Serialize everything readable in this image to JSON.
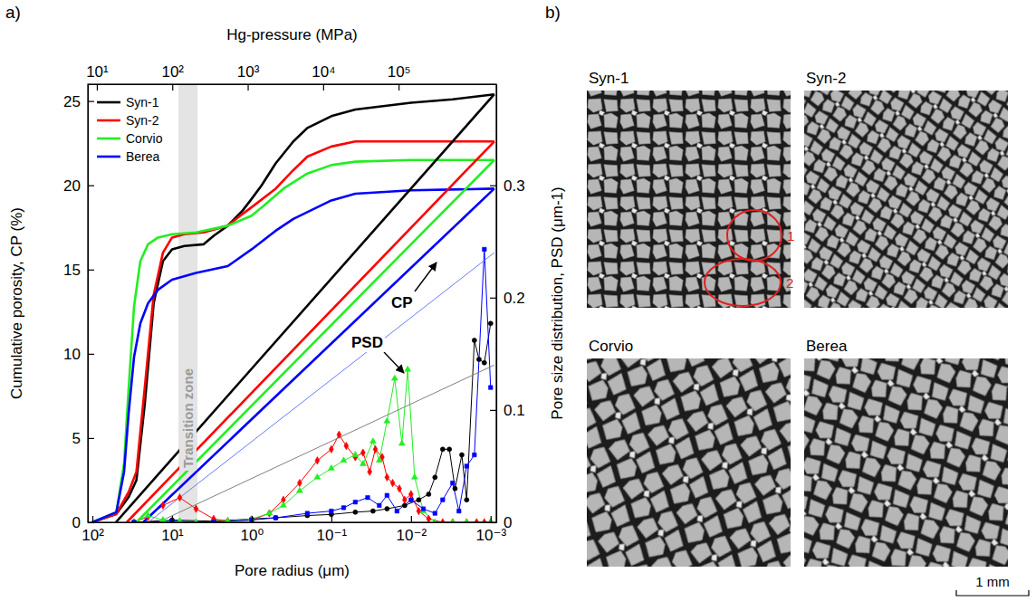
{
  "chart_data": {
    "type": "line",
    "panel_label": "a)",
    "x_label": "Pore radius (μm)",
    "x2_label": "Hg-pressure (MPa)",
    "y_label": "Cumulative porosity, CP (%)",
    "y2_label": "Pore size distribution, PSD (μm-1)",
    "log": "x",
    "grid": false,
    "legend": "top-left",
    "xlim": [
      114,
      0.00085
    ],
    "xticks": [
      {
        "value": 100,
        "label": "10²"
      },
      {
        "value": 10,
        "label": "10¹"
      },
      {
        "value": 1,
        "label": "10⁰"
      },
      {
        "value": 0.1,
        "label": "10⁻¹"
      },
      {
        "value": 0.01,
        "label": "10⁻²"
      },
      {
        "value": 0.001,
        "label": "10⁻³"
      }
    ],
    "x2lim": [
      7.6,
      1970000
    ],
    "x2ticks": [
      {
        "value": 10,
        "label": "10¹"
      },
      {
        "value": 100,
        "label": "10²"
      },
      {
        "value": 1000,
        "label": "10³"
      },
      {
        "value": 10000,
        "label": "10⁴"
      },
      {
        "value": 100000,
        "label": "10⁵"
      }
    ],
    "ylim": [
      0,
      26
    ],
    "yticks": [
      0,
      5,
      10,
      15,
      20,
      25
    ],
    "y2lim": [
      0,
      0.39
    ],
    "y2ticks": [
      0,
      0.1,
      0.2,
      0.3
    ],
    "transition_zone": {
      "label": "Transition zone",
      "range": [
        8.3,
        4.8
      ]
    },
    "annotations": [
      {
        "text": "CP"
      },
      {
        "text": "PSD"
      }
    ],
    "series": [
      {
        "name": "Syn-1",
        "color": "#000000",
        "axis": "y",
        "line_style": "solid",
        "x": [
          100,
          50,
          35,
          28,
          22,
          17,
          13,
          10,
          7,
          4,
          3,
          2,
          1.3,
          1,
          0.75,
          0.5,
          0.3,
          0.2,
          0.1,
          0.05,
          0.01,
          0.003,
          0.0009
        ],
        "values": [
          0,
          0.5,
          1.5,
          2.5,
          7,
          13,
          15.5,
          16.2,
          16.4,
          16.5,
          17,
          17.6,
          18.5,
          19.2,
          20,
          21.3,
          22.6,
          23.4,
          24.1,
          24.5,
          24.9,
          25.1,
          25.4
        ]
      },
      {
        "name": "Syn-2",
        "color": "#ff0000",
        "axis": "y",
        "line_style": "solid",
        "x": [
          100,
          50,
          35,
          28,
          22,
          17,
          13,
          10,
          7,
          4,
          2,
          1.3,
          1,
          0.5,
          0.3,
          0.2,
          0.1,
          0.05,
          0.01,
          0.0009
        ],
        "values": [
          0,
          0.5,
          1.8,
          3,
          8,
          13.5,
          16,
          16.9,
          17.1,
          17.2,
          17.6,
          18.3,
          18.7,
          19.8,
          20.9,
          21.7,
          22.3,
          22.6,
          22.6,
          22.6
        ]
      },
      {
        "name": "Corvio",
        "color": "#22ee22",
        "axis": "y",
        "line_style": "solid",
        "x": [
          100,
          50,
          40,
          35,
          30,
          25,
          20,
          15,
          10,
          5,
          2,
          1,
          0.7,
          0.4,
          0.2,
          0.1,
          0.05,
          0.01,
          0.0009
        ],
        "values": [
          0,
          0.6,
          3.5,
          8,
          12.8,
          15.5,
          16.5,
          16.9,
          17.1,
          17.2,
          17.6,
          18.2,
          18.8,
          19.8,
          20.7,
          21.2,
          21.4,
          21.5,
          21.5
        ]
      },
      {
        "name": "Berea",
        "color": "#0000ff",
        "axis": "y",
        "line_style": "solid",
        "x": [
          100,
          50,
          40,
          35,
          30,
          25,
          20,
          15,
          10,
          5,
          2,
          1,
          0.5,
          0.3,
          0.1,
          0.05,
          0.01,
          0.0009
        ],
        "values": [
          0,
          0.6,
          3,
          6.5,
          9.8,
          11.8,
          13,
          13.8,
          14.4,
          14.8,
          15.2,
          16.2,
          17.3,
          18,
          19.1,
          19.5,
          19.7,
          19.8
        ]
      },
      {
        "color": "#000000",
        "axis": "y2",
        "line_style": "thin",
        "marker": "circle",
        "x": [
          30,
          10,
          3,
          1,
          0.5,
          0.2,
          0.1,
          0.05,
          0.03,
          0.02,
          0.012,
          0.008,
          0.006,
          0.005,
          0.004,
          0.0033,
          0.0028,
          0.0023,
          0.002,
          0.0016,
          0.0014,
          0.0012,
          0.001
        ],
        "values": [
          0,
          0.002,
          0.001,
          0.003,
          0.004,
          0.006,
          0.007,
          0.009,
          0.01,
          0.012,
          0.015,
          0.02,
          0.025,
          0.04,
          0.065,
          0.065,
          0.03,
          0.06,
          0.02,
          0.162,
          0.145,
          0.142,
          0.177
        ]
      },
      {
        "color": "#ff0000",
        "axis": "y2",
        "line_style": "thin",
        "marker": "diamond",
        "x": [
          30,
          20,
          13,
          8,
          5,
          3,
          2,
          1,
          0.6,
          0.4,
          0.25,
          0.15,
          0.1,
          0.08,
          0.065,
          0.05,
          0.04,
          0.033,
          0.028,
          0.023,
          0.02,
          0.017,
          0.014,
          0.012,
          0.01,
          0.008,
          0.006,
          0.004,
          0.003,
          0.002,
          0.0015,
          0.0012,
          0.001
        ],
        "values": [
          0,
          0.005,
          0.015,
          0.022,
          0.012,
          0.003,
          0.001,
          0.002,
          0.008,
          0.02,
          0.035,
          0.055,
          0.065,
          0.078,
          0.068,
          0.058,
          0.062,
          0.045,
          0.065,
          0.058,
          0.04,
          0.035,
          0.03,
          0.02,
          0.025,
          0.01,
          0.003,
          0,
          0,
          0,
          0,
          0,
          0
        ]
      },
      {
        "color": "#22ee22",
        "axis": "y2",
        "line_style": "thin",
        "marker": "triangle",
        "x": [
          30,
          20,
          13,
          8,
          5,
          2,
          1,
          0.6,
          0.4,
          0.25,
          0.15,
          0.1,
          0.07,
          0.05,
          0.04,
          0.03,
          0.025,
          0.02,
          0.016,
          0.013,
          0.011,
          0.009,
          0.007,
          0.005,
          0.003,
          0.002,
          0.001
        ],
        "values": [
          0,
          0.006,
          0.002,
          0.001,
          0,
          0.001,
          0.003,
          0.008,
          0.015,
          0.028,
          0.04,
          0.048,
          0.055,
          0.06,
          0.052,
          0.072,
          0.055,
          0.09,
          0.128,
          0.07,
          0.136,
          0.04,
          0.01,
          0,
          0,
          0,
          0
        ]
      },
      {
        "color": "#0000ff",
        "axis": "y2",
        "line_style": "thin",
        "marker": "square",
        "x": [
          30,
          10,
          3,
          1,
          0.5,
          0.2,
          0.1,
          0.07,
          0.05,
          0.035,
          0.025,
          0.02,
          0.015,
          0.01,
          0.007,
          0.005,
          0.004,
          0.003,
          0.0025,
          0.002,
          0.0016,
          0.0012,
          0.001
        ],
        "values": [
          0,
          0.001,
          0,
          0.002,
          0.004,
          0.008,
          0.01,
          0.013,
          0.018,
          0.022,
          0.015,
          0.024,
          0.01,
          0.02,
          0.012,
          0.008,
          0.02,
          0.035,
          0.01,
          0.05,
          0.06,
          0.243,
          0.12
        ]
      },
      {
        "color": "#000000",
        "axis": "y",
        "line_style": "solid",
        "x": [
          50.7,
          0.0009
        ],
        "values": [
          0,
          25.4
        ]
      },
      {
        "color": "#ff0000",
        "axis": "y",
        "line_style": "solid",
        "x": [
          37,
          0.0009
        ],
        "values": [
          0,
          22.6
        ]
      },
      {
        "color": "#22ee22",
        "axis": "y",
        "line_style": "solid",
        "x": [
          28,
          0.0009
        ],
        "values": [
          0,
          21.5
        ]
      },
      {
        "color": "#0000ff",
        "axis": "y",
        "line_style": "solid",
        "x": [
          23,
          0.0009
        ],
        "values": [
          0,
          19.8
        ]
      },
      {
        "color": "#6a7bff",
        "axis": "y2",
        "line_style": "thin",
        "x": [
          20,
          0.0009
        ],
        "values": [
          0,
          0.24
        ]
      },
      {
        "color": "#808080",
        "axis": "y2",
        "line_style": "thin",
        "x": [
          15,
          0.0009
        ],
        "values": [
          0,
          0.14
        ]
      }
    ]
  },
  "micrographs": {
    "panel_label": "b)",
    "images": [
      {
        "label": "Syn-1",
        "regions": [
          "1",
          "2"
        ]
      },
      {
        "label": "Syn-2"
      },
      {
        "label": "Corvio"
      },
      {
        "label": "Berea"
      }
    ],
    "scale_bar": "1 mm"
  }
}
